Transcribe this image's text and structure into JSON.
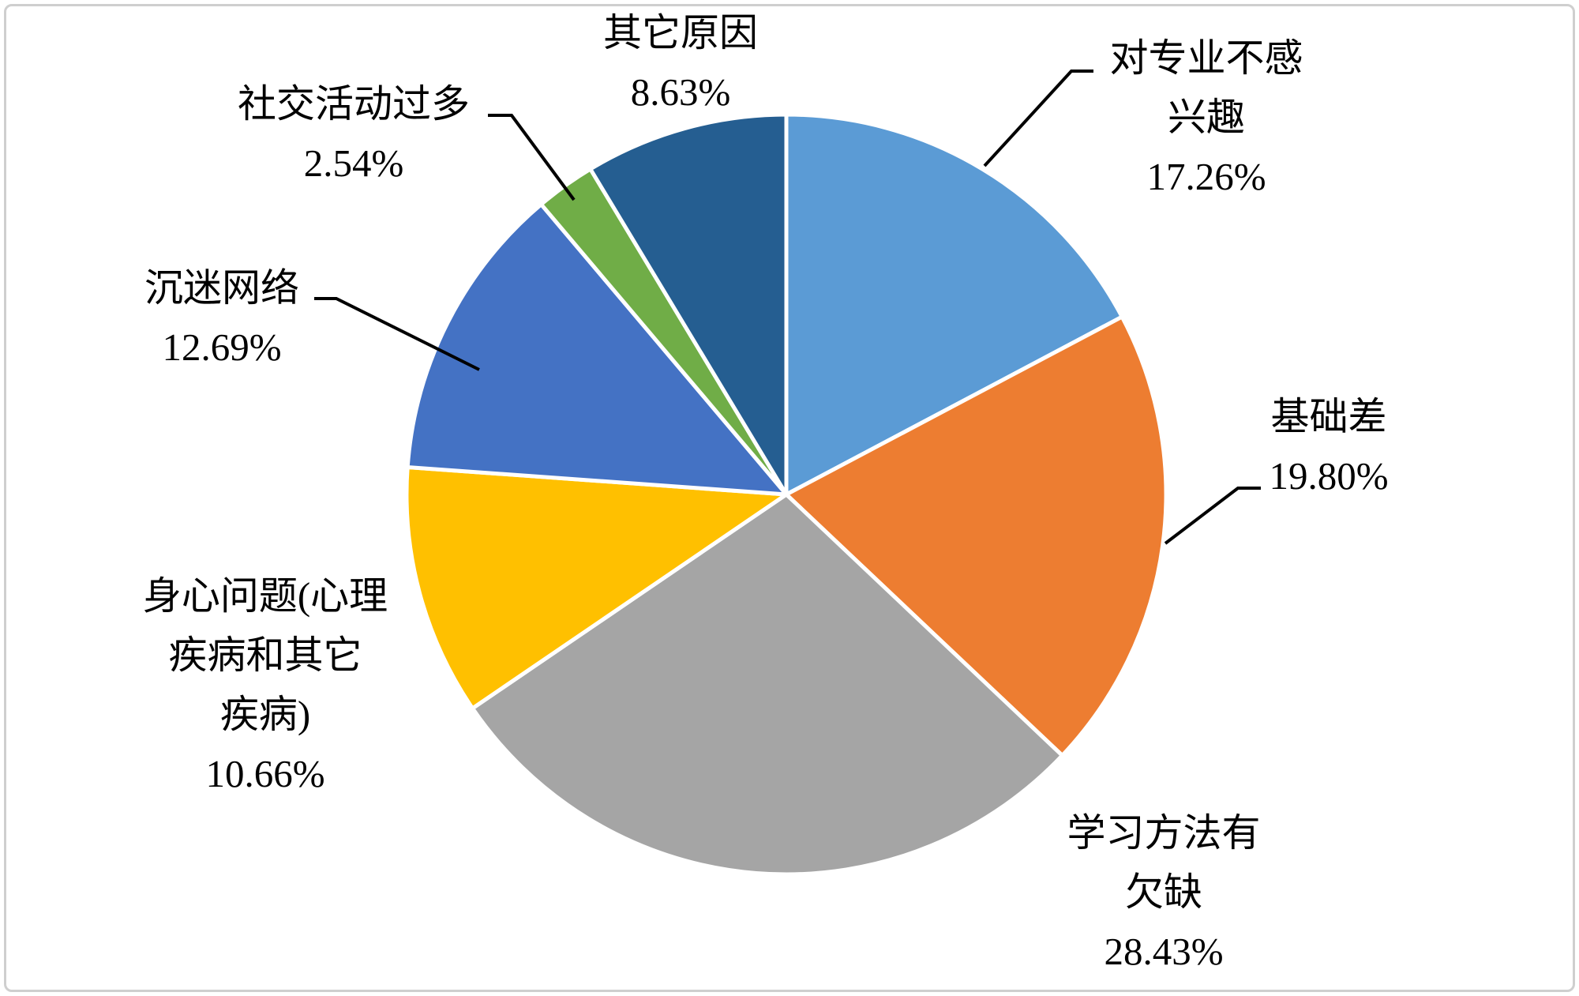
{
  "chart_data": {
    "type": "pie",
    "title": "",
    "categories": [
      "对专业不感兴趣",
      "基础差",
      "学习方法有欠缺",
      "身心问题(心理疾病和其它疾病)",
      "沉迷网络",
      "社交活动过多",
      "其它原因"
    ],
    "values": [
      17.26,
      19.8,
      28.43,
      10.66,
      12.69,
      2.54,
      8.63
    ],
    "unit": "%",
    "colors": [
      "#5B9BD5",
      "#ED7D31",
      "#A5A5A5",
      "#FFC000",
      "#4472C4",
      "#70AD47",
      "#255E91"
    ],
    "slice_border_color": "#FFFFFF",
    "leader_line_color": "#000000",
    "start_angle_deg": 0,
    "direction": "clockwise",
    "legend": "none",
    "labels": {
      "no_interest": "对专业不感\n兴趣\n17.26%",
      "weak_foundation": "基础差\n19.80%",
      "study_method": "学习方法有\n欠缺\n28.43%",
      "mind_body": "身心问题(心理\n疾病和其它\n疾病)\n10.66%",
      "internet_addiction": "沉迷网络\n12.69%",
      "social_activities": "社交活动过多\n2.54%",
      "other_reasons": "其它原因\n8.63%"
    }
  }
}
